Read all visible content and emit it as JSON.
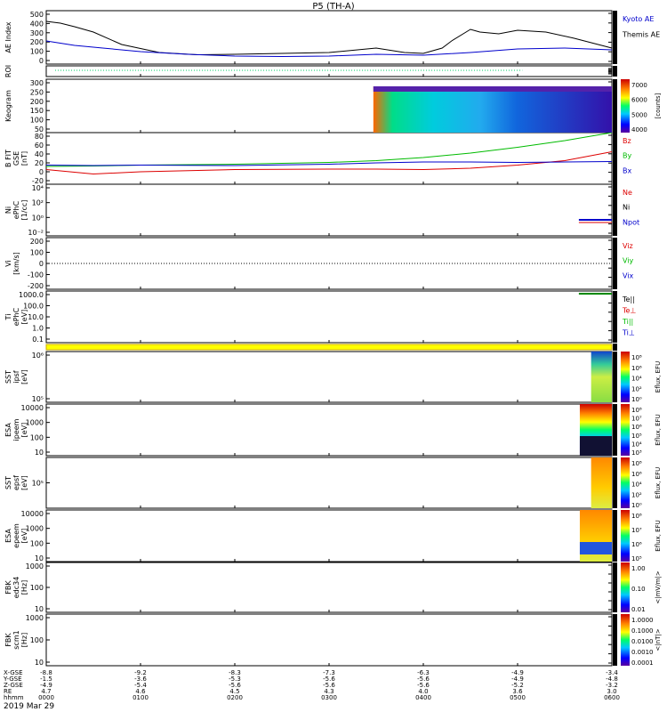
{
  "title": "P5 (TH-A)",
  "date_label": "2019 Mar 29",
  "xaxis": {
    "row_labels": [
      "X-GSE",
      "Y-GSE",
      "Z-GSE",
      "RE",
      "hhmm"
    ],
    "ticks": [
      {
        "x": "-8.8",
        "y": "-1.5",
        "z": "-4.9",
        "re": "4.7",
        "t": "0000"
      },
      {
        "x": "-9.2",
        "y": "-3.6",
        "z": "-5.4",
        "re": "4.6",
        "t": "0100"
      },
      {
        "x": "-8.3",
        "y": "-5.3",
        "z": "-5.6",
        "re": "4.5",
        "t": "0200"
      },
      {
        "x": "-7.3",
        "y": "-5.6",
        "z": "-5.6",
        "re": "4.3",
        "t": "0300"
      },
      {
        "x": "-6.3",
        "y": "-5.6",
        "z": "-5.6",
        "re": "4.0",
        "t": "0400"
      },
      {
        "x": "-4.9",
        "y": "-4.9",
        "z": "-5.2",
        "re": "3.6",
        "t": "0500"
      },
      {
        "x": "-3.4",
        "y": "-4.8",
        "z": "-3.2",
        "re": "3.0",
        "t": "0600"
      }
    ]
  },
  "colors": {
    "kyoto": "#0000cc",
    "themis": "#000000",
    "bz": "#dd0000",
    "by": "#00bb00",
    "bx": "#0000cc",
    "roi": "#00cc66",
    "yellowbar": "#ffff00"
  },
  "panels": [
    {
      "id": "ae",
      "ylabel": "AE Index",
      "ticks": [
        "500",
        "400",
        "300",
        "200",
        "100",
        "0"
      ],
      "right": [
        {
          "t": "Kyoto AE",
          "c": "#0000cc"
        },
        {
          "t": "Themis AE",
          "c": "#000000"
        }
      ]
    },
    {
      "id": "roi",
      "ylabel": "ROI",
      "ticks": [],
      "right": []
    },
    {
      "id": "keogram",
      "ylabel": "Keogram",
      "ticks": [
        "300",
        "250",
        "200",
        "150",
        "100",
        "50"
      ],
      "right": [],
      "cb": {
        "ticks": [
          "7000",
          "6000",
          "5000",
          "4000"
        ],
        "label": "[counts]"
      }
    },
    {
      "id": "bfit",
      "ylabel": "B FIT",
      "sub": "GSE",
      "units": "[nT]",
      "ticks": [
        "80",
        "60",
        "40",
        "20",
        "0",
        "-20"
      ],
      "right": [
        {
          "t": "Bz",
          "c": "#dd0000"
        },
        {
          "t": "By",
          "c": "#00bb00"
        },
        {
          "t": "Bx",
          "c": "#0000cc"
        }
      ]
    },
    {
      "id": "ni",
      "ylabel": "Ni",
      "sub": "ePhC",
      "units": "[1/cc]",
      "ticks": [
        "10⁴",
        "10²",
        "10⁰",
        "10⁻²"
      ],
      "right": [
        {
          "t": "Ne",
          "c": "#dd0000"
        },
        {
          "t": "Ni",
          "c": "#000000"
        },
        {
          "t": "Npot",
          "c": "#0000cc"
        }
      ]
    },
    {
      "id": "vi",
      "ylabel": "Vi",
      "units": "[km/s]",
      "ticks": [
        "200",
        "100",
        "0",
        "-100",
        "-200"
      ],
      "right": [
        {
          "t": "Viz",
          "c": "#dd0000"
        },
        {
          "t": "Viy",
          "c": "#00bb00"
        },
        {
          "t": "Vix",
          "c": "#0000cc"
        }
      ]
    },
    {
      "id": "ti",
      "ylabel": "Ti",
      "sub": "ePhC",
      "units": "[eV]",
      "ticks": [
        "1000.0",
        "100.0",
        "10.0",
        "1.0",
        "0.1"
      ],
      "right": [
        {
          "t": "Te||",
          "c": "#000000"
        },
        {
          "t": "Te⊥",
          "c": "#dd0000"
        },
        {
          "t": "Ti||",
          "c": "#00bb00"
        },
        {
          "t": "Ti⊥",
          "c": "#0000cc"
        }
      ]
    },
    {
      "id": "sst_i",
      "ylabel": "SST",
      "sub": "ipsf",
      "units": "[eV]",
      "ticks": [
        "10⁶",
        "10⁵"
      ],
      "right": [],
      "cb": {
        "ticks": [
          "10⁸",
          "10⁶",
          "10⁴",
          "10²",
          "10⁰"
        ],
        "label": "Eflux, EFU"
      }
    },
    {
      "id": "esa_i",
      "ylabel": "ESA",
      "sub": "ipeem",
      "units": "[eV]",
      "ticks": [
        "10000",
        "1000",
        "100",
        "10"
      ],
      "right": [],
      "cb": {
        "ticks": [
          "10⁸",
          "10⁷",
          "10⁶",
          "10⁵",
          "10⁴",
          "10³"
        ],
        "label": "Eflux, EFU"
      }
    },
    {
      "id": "sst_e",
      "ylabel": "SST",
      "sub": "epsf",
      "units": "[eV]",
      "ticks": [
        "10⁵"
      ],
      "right": [],
      "cb": {
        "ticks": [
          "10⁸",
          "10⁶",
          "10⁴",
          "10²",
          "10⁰"
        ],
        "label": "Eflux, EFU"
      }
    },
    {
      "id": "esa_e",
      "ylabel": "ESA",
      "sub": "epeem",
      "units": "[eV]",
      "ticks": [
        "10000",
        "1000",
        "100",
        "10"
      ],
      "right": [],
      "cb": {
        "ticks": [
          "10⁸",
          "10⁷",
          "10⁶",
          "10⁵"
        ],
        "label": "Eflux, EFU"
      }
    },
    {
      "id": "fbk1",
      "ylabel": "FBK",
      "sub": "edc34",
      "units": "[Hz]",
      "ticks": [
        "1000",
        "100",
        "10"
      ],
      "right": [],
      "cb": {
        "ticks": [
          "1.00",
          "0.10",
          "0.01"
        ],
        "label": "<|mV/m|>"
      }
    },
    {
      "id": "fbk2",
      "ylabel": "FBK",
      "sub": "scm1",
      "units": "[Hz]",
      "ticks": [
        "1000",
        "100",
        "10"
      ],
      "right": [],
      "cb": {
        "ticks": [
          "1.0000",
          "0.1000",
          "0.0100",
          "0.0010",
          "0.0001"
        ],
        "label": "<|nT|>"
      }
    }
  ],
  "chart_data": {
    "type": "line",
    "time_range": [
      "0000",
      "0600"
    ],
    "series": [
      {
        "name": "Themis AE",
        "x_hours": [
          0,
          0.15,
          0.3,
          0.5,
          0.8,
          1.2,
          1.6,
          2.0,
          2.5,
          3.0,
          3.5,
          3.8,
          4.0,
          4.2,
          4.3,
          4.5,
          4.6,
          4.8,
          5.0,
          5.3,
          5.6,
          6.0
        ],
        "values": [
          420,
          400,
          360,
          300,
          160,
          70,
          45,
          50,
          60,
          70,
          120,
          70,
          60,
          120,
          200,
          330,
          300,
          280,
          320,
          300,
          230,
          120
        ]
      },
      {
        "name": "Kyoto AE",
        "x_hours": [
          0,
          0.3,
          0.6,
          1.0,
          1.5,
          2.0,
          2.5,
          3.0,
          3.5,
          4.0,
          4.5,
          5.0,
          5.5,
          6.0
        ],
        "values": [
          200,
          150,
          120,
          80,
          50,
          30,
          25,
          30,
          50,
          40,
          70,
          110,
          120,
          100
        ]
      },
      {
        "name": "Bz",
        "x_hours": [
          0,
          0.5,
          1,
          2,
          3,
          3.5,
          4,
          4.5,
          5,
          5.5,
          6
        ],
        "values": [
          5,
          -5,
          0,
          5,
          6,
          6,
          5,
          8,
          15,
          25,
          45
        ]
      },
      {
        "name": "By",
        "x_hours": [
          0,
          0.5,
          1,
          2,
          3,
          3.5,
          4,
          4.5,
          5,
          5.5,
          6
        ],
        "values": [
          12,
          13,
          15,
          17,
          21,
          25,
          32,
          42,
          55,
          70,
          88
        ]
      },
      {
        "name": "Bx",
        "x_hours": [
          0,
          0.5,
          1,
          2,
          3,
          3.5,
          4,
          4.5,
          5,
          5.5,
          6
        ],
        "values": [
          15,
          14,
          15,
          14,
          17,
          20,
          22,
          22,
          21,
          22,
          23
        ]
      }
    ]
  }
}
